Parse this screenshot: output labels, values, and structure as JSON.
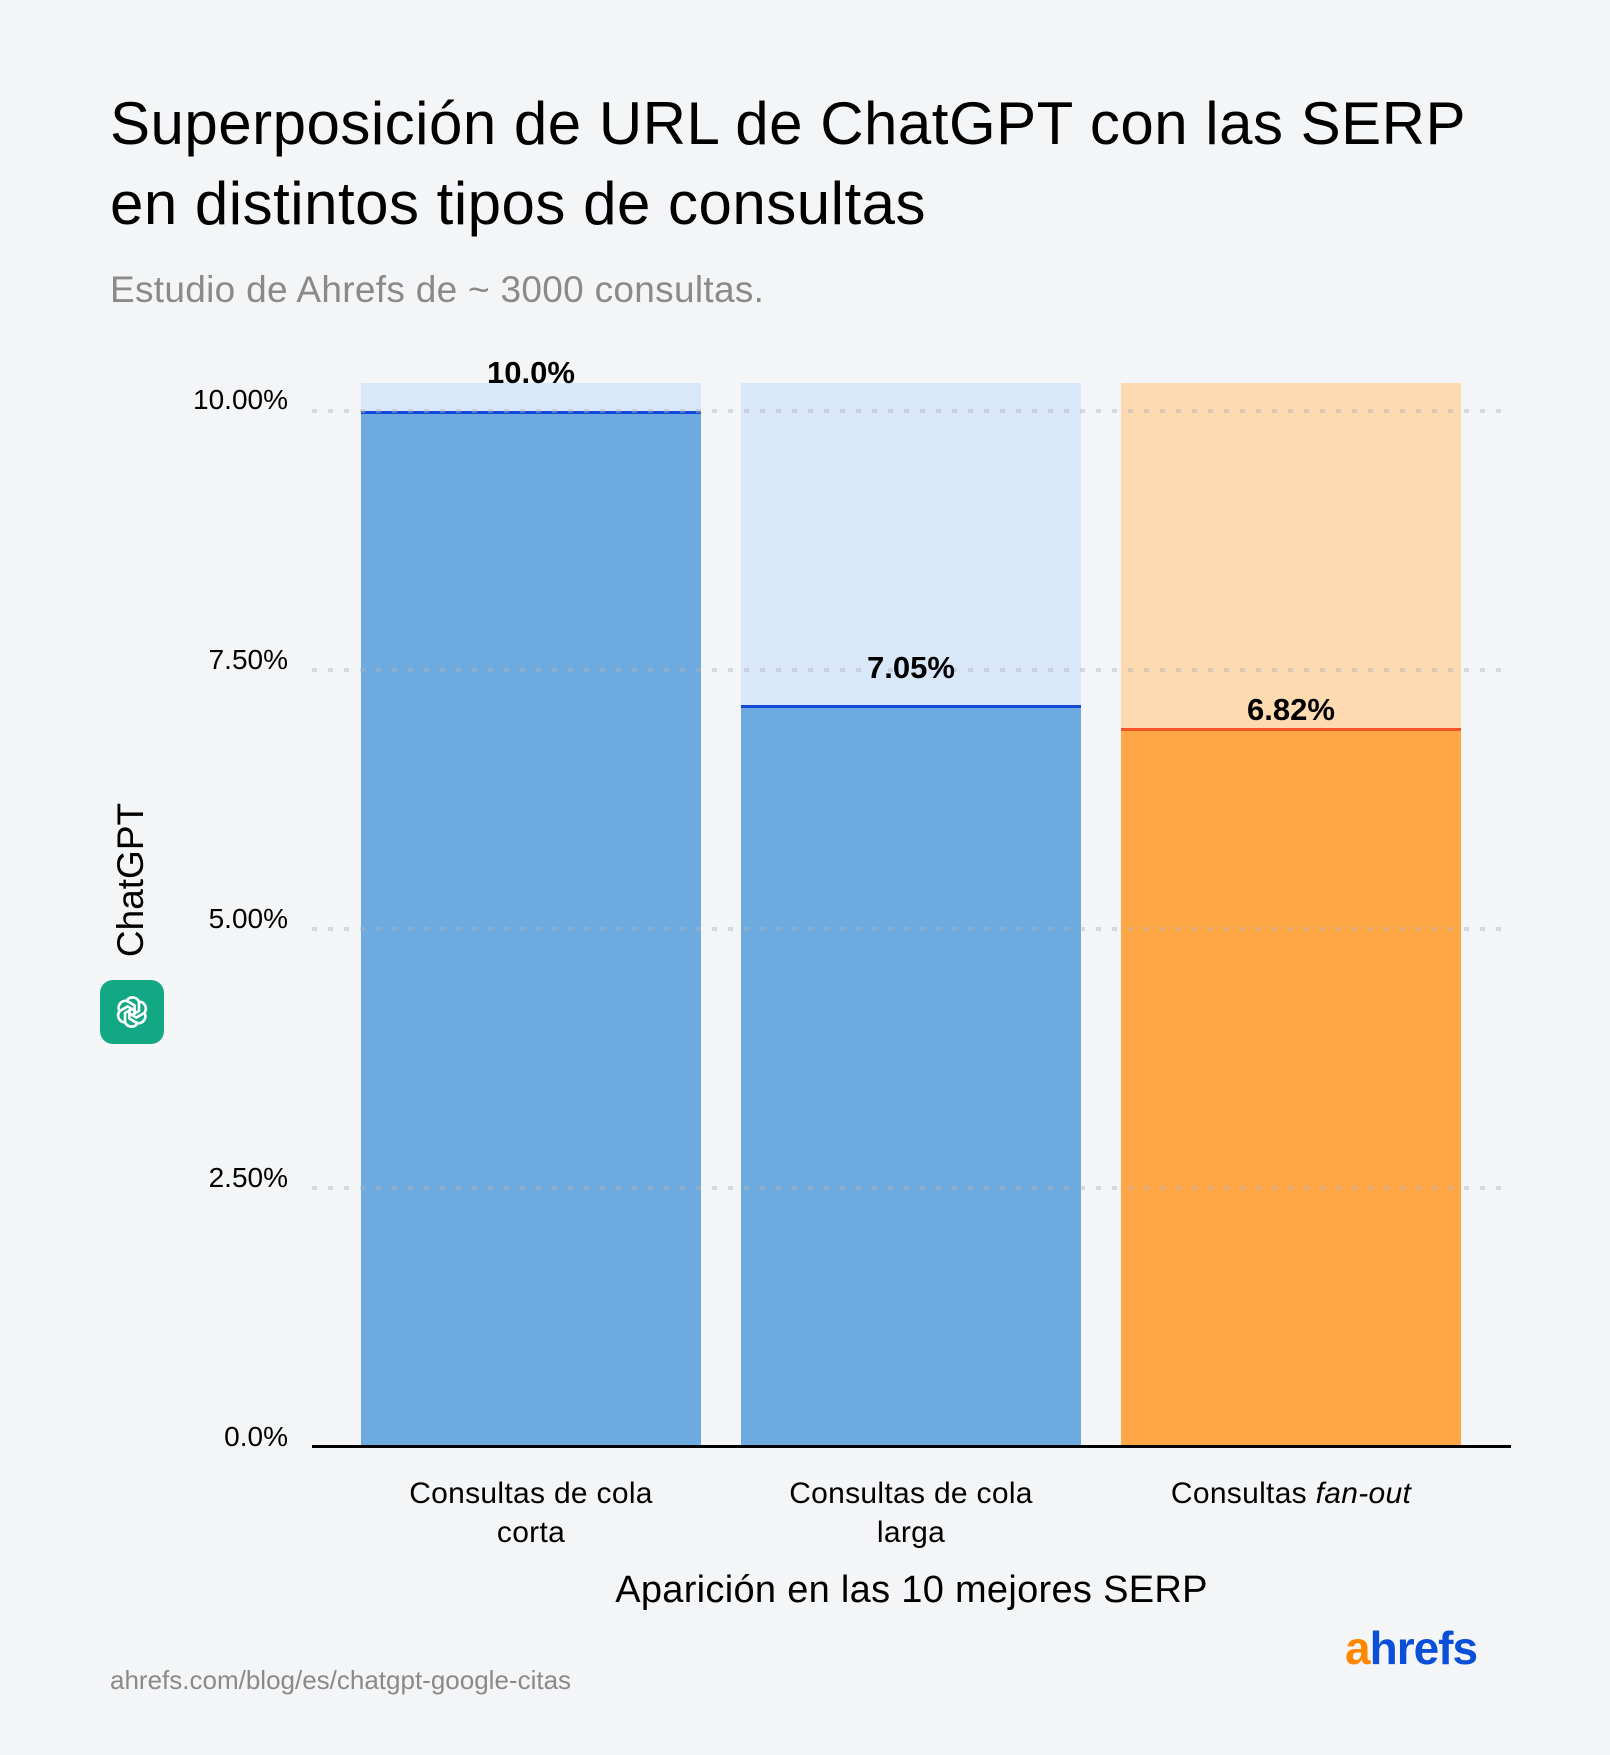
{
  "header": {
    "title": "Superposición de URL de ChatGPT con las SERP en distintos tipos de consultas",
    "subtitle": "Estudio de Ahrefs de ~ 3000 consultas."
  },
  "y_axis": {
    "label": "ChatGPT",
    "icon": "chatgpt-logo-icon",
    "ticks": [
      "10.00%",
      "7.50%",
      "5.00%",
      "2.50%",
      "0.0%"
    ]
  },
  "x_axis": {
    "label": "Aparición en las 10 mejores SERP",
    "categories": [
      {
        "line1": "Consultas de cola",
        "line2": "corta"
      },
      {
        "line1": "Consultas de cola",
        "line2": "larga"
      },
      {
        "prefix": "Consultas ",
        "italic": "fan-out"
      }
    ]
  },
  "bars": [
    {
      "value_label": "10.0%",
      "color": "#6caadf",
      "bg_color": "#d9e8f8",
      "line_color": "#1249d6"
    },
    {
      "value_label": "7.05%",
      "color": "#6caadf",
      "bg_color": "#d9e8f8",
      "line_color": "#1249d6"
    },
    {
      "value_label": "6.82%",
      "color": "#ffa646",
      "bg_color": "#fedab1",
      "line_color": "#f55526"
    }
  ],
  "footer": {
    "source": "ahrefs.com/blog/es/chatgpt-google-citas",
    "logo_a": "a",
    "logo_rest": "hrefs",
    "logo_colors": {
      "a": "#ff8800",
      "rest": "#0a4fd8"
    }
  },
  "chart_data": {
    "type": "bar",
    "title": "Superposición de URL de ChatGPT con las SERP en distintos tipos de consultas",
    "subtitle": "Estudio de Ahrefs de ~ 3000 consultas.",
    "categories": [
      "Consultas de cola corta",
      "Consultas de cola larga",
      "Consultas fan-out"
    ],
    "values": [
      10.0,
      7.05,
      6.82
    ],
    "value_labels": [
      "10.0%",
      "7.05%",
      "6.82%"
    ],
    "xlabel": "Aparición en las 10 mejores SERP",
    "ylabel": "ChatGPT",
    "ylim": [
      0,
      10.3
    ],
    "yticks": [
      0,
      2.5,
      5.0,
      7.5,
      10.0
    ],
    "ytick_labels": [
      "0.0%",
      "2.50%",
      "5.00%",
      "7.50%",
      "10.00%"
    ],
    "grid": "horizontal dotted",
    "legend": "none",
    "colors": [
      "#6caadf",
      "#6caadf",
      "#ffa646"
    ],
    "source": "ahrefs.com/blog/es/chatgpt-google-citas"
  }
}
